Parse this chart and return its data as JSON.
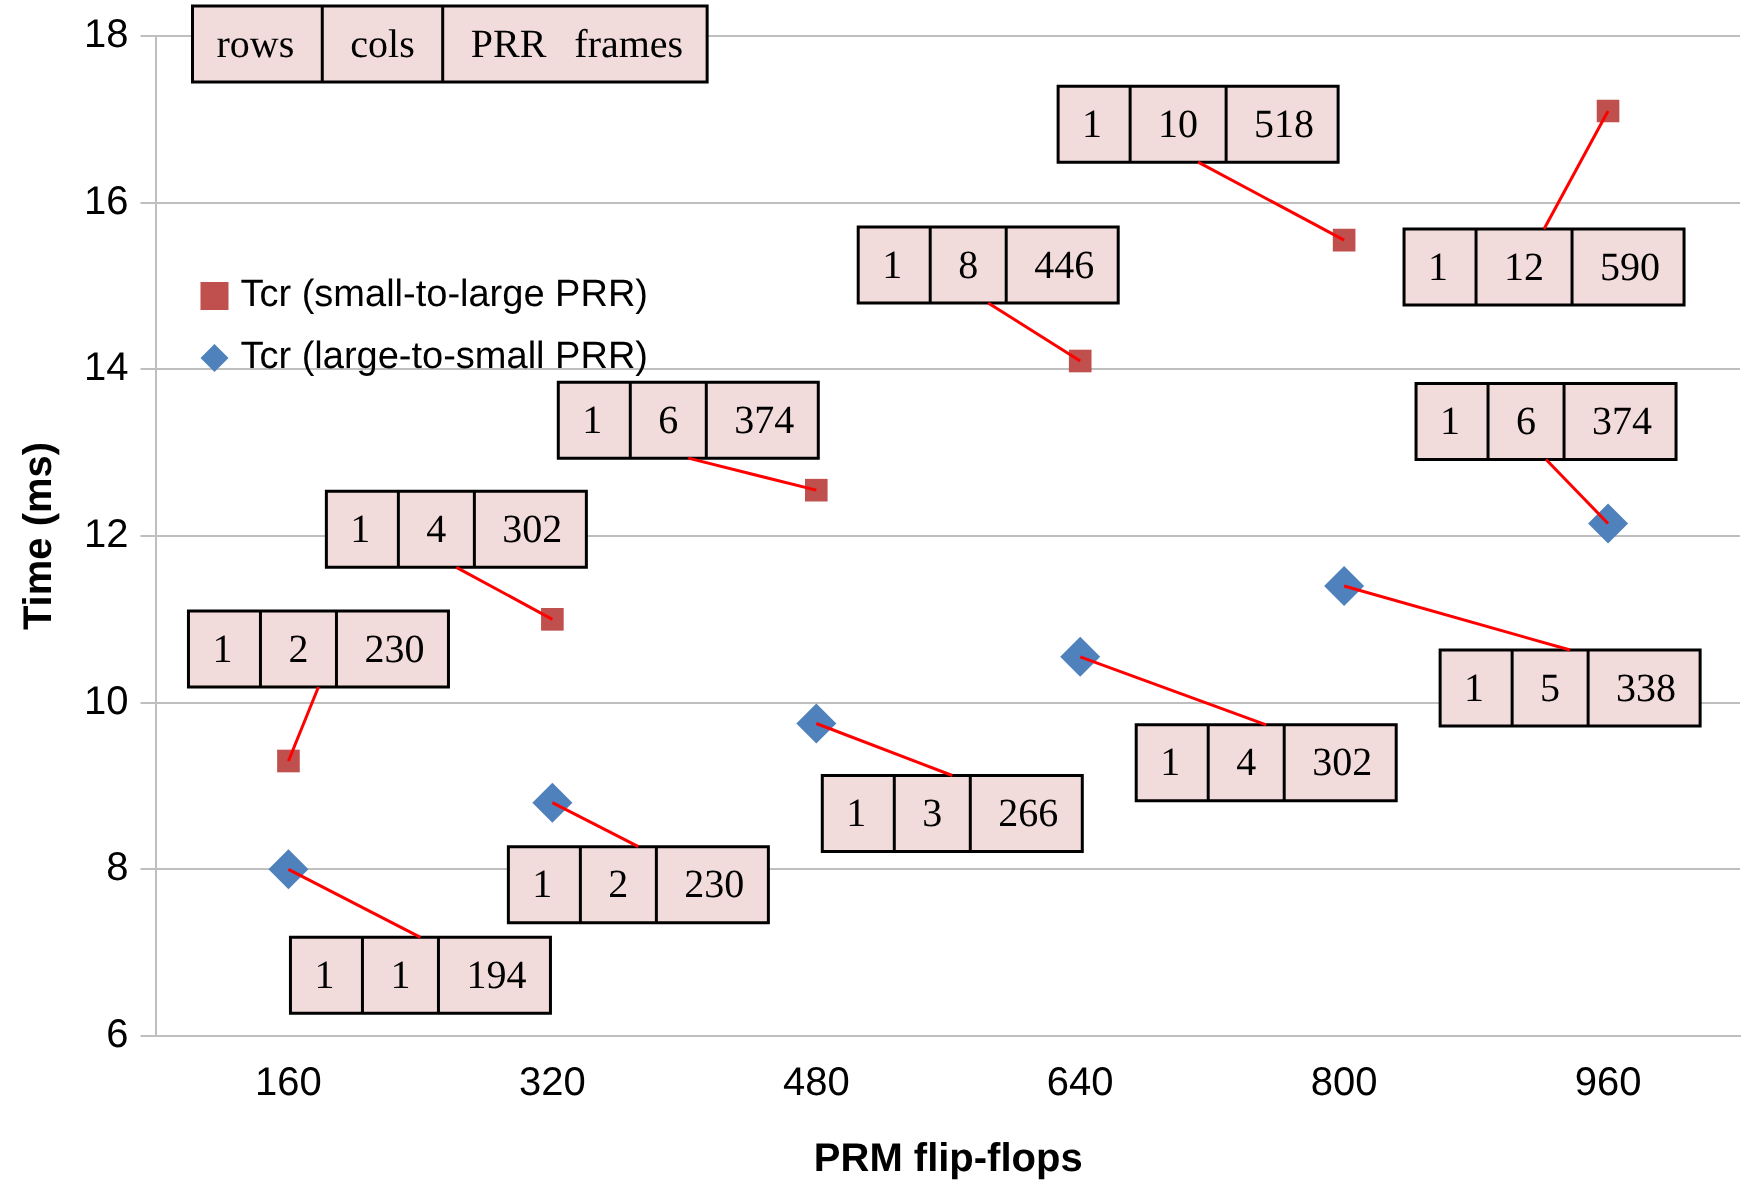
{
  "chart_data": {
    "type": "scatter",
    "xlabel": "PRM flip-flops",
    "ylabel": "Time (ms)",
    "categories": [
      "160",
      "320",
      "480",
      "640",
      "800",
      "960"
    ],
    "series": [
      {
        "name": "Tcr (small-to-large PRR)",
        "color": "#c0504d",
        "marker": "square",
        "values": [
          9.3,
          11.0,
          12.55,
          14.1,
          15.55,
          17.1
        ]
      },
      {
        "name": "Tcr (large-to-small PRR)",
        "color": "#4f81bd",
        "marker": "diamond",
        "values": [
          8.0,
          8.8,
          9.75,
          10.55,
          11.4,
          12.15
        ]
      }
    ],
    "ylim": [
      6,
      18
    ],
    "yticks": [
      6,
      8,
      10,
      12,
      14,
      16,
      18
    ],
    "grid": "y",
    "legend": "top left",
    "annotations": [
      "rows  cols  PRR frames",
      {
        "text": "1  2  230",
        "x": "160",
        "y": 9.3
      },
      {
        "text": "1  4  302",
        "x": "320",
        "y": 11.0
      },
      {
        "text": "1  6  374",
        "x": "480",
        "y": 12.55
      },
      {
        "text": "1  8  446",
        "x": "640",
        "y": 14.1
      },
      {
        "text": "1  10  518",
        "x": "800",
        "y": 15.55
      },
      {
        "text": "1  12  590",
        "x": "960",
        "y": 17.1
      },
      {
        "text": "1  1  194",
        "x": "160",
        "y": 8.0
      },
      {
        "text": "1  2  230",
        "x": "320",
        "y": 8.8
      },
      {
        "text": "1  3  266",
        "x": "480",
        "y": 9.75
      },
      {
        "text": "1  4  302",
        "x": "640",
        "y": 10.55
      },
      {
        "text": "1  5  338",
        "x": "800",
        "y": 11.4
      },
      {
        "text": "1  6  374",
        "x": "960",
        "y": 12.15
      }
    ]
  }
}
